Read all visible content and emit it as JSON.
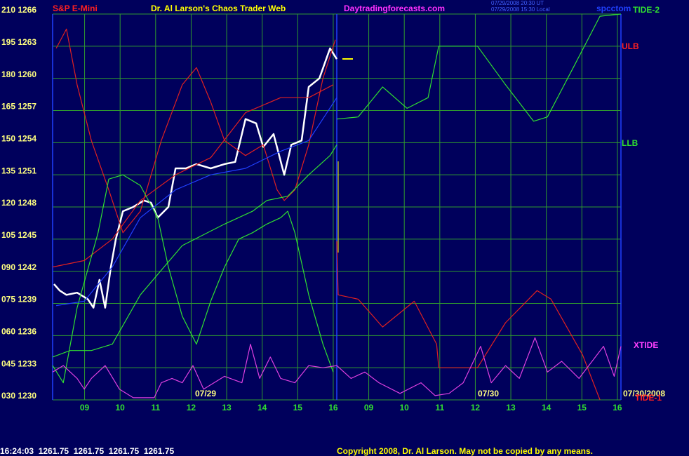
{
  "chart_data": {
    "type": "line",
    "title": "Dr. Al Larson's Chaos Trader Web",
    "subtitle": "S&P E-Mini",
    "annotations": [
      "Daytradingforecasts.com",
      "07/29/2008 20:30 UT",
      "07/29/2008 15:30 Local",
      "spcctom",
      "07/29",
      "07/30",
      "07/30/2008",
      "16:24:03  1261.75  1261.75  1261.75  1261.75",
      "Copyright 2008, Dr. Al Larson. May not be copied by any means."
    ],
    "xlim": [
      0.1,
      16.1
    ],
    "xticks": [
      {
        "value": 1,
        "label": "09"
      },
      {
        "value": 2,
        "label": "10"
      },
      {
        "value": 3,
        "label": "11"
      },
      {
        "value": 4,
        "label": "12"
      },
      {
        "value": 5,
        "label": "13"
      },
      {
        "value": 6,
        "label": "14"
      },
      {
        "value": 7,
        "label": "15"
      },
      {
        "value": 8,
        "label": "16"
      },
      {
        "value": 9,
        "label": "09"
      },
      {
        "value": 10,
        "label": "10"
      },
      {
        "value": 11,
        "label": "11"
      },
      {
        "value": 12,
        "label": "12"
      },
      {
        "value": 13,
        "label": "13"
      },
      {
        "value": 14,
        "label": "14"
      },
      {
        "value": 15,
        "label": "15"
      },
      {
        "value": 16,
        "label": "16"
      }
    ],
    "ylim": [
      30,
      210
    ],
    "yticks": [
      {
        "value": 210,
        "label": "210 1266"
      },
      {
        "value": 195,
        "label": "195 1263"
      },
      {
        "value": 180,
        "label": "180 1260"
      },
      {
        "value": 165,
        "label": "165 1257"
      },
      {
        "value": 150,
        "label": "150 1254"
      },
      {
        "value": 135,
        "label": "135 1251"
      },
      {
        "value": 120,
        "label": "120 1248"
      },
      {
        "value": 105,
        "label": "105 1245"
      },
      {
        "value": 90,
        "label": "090 1242"
      },
      {
        "value": 75,
        "label": "075 1239"
      },
      {
        "value": 60,
        "label": "060 1236"
      },
      {
        "value": 45,
        "label": "045 1233"
      },
      {
        "value": 30,
        "label": "030 1230"
      }
    ],
    "grid": true,
    "series": [
      {
        "color": "#ffffff",
        "x": [
          0.14,
          0.3,
          0.49,
          0.79,
          1.09,
          1.25,
          1.42,
          1.58,
          1.74,
          1.88,
          2.08,
          2.37,
          2.67,
          2.87,
          3.06,
          3.36,
          3.56,
          3.85,
          4.15,
          4.55,
          4.94,
          5.24,
          5.53,
          5.83,
          6.03,
          6.32,
          6.62,
          6.82,
          7.11,
          7.31,
          7.61,
          7.91,
          8.1
        ],
        "values": [
          84,
          81,
          79,
          80,
          77,
          73,
          86,
          73,
          92,
          105,
          118,
          120,
          123,
          122,
          115,
          120,
          138,
          138,
          140,
          138,
          140,
          141,
          161,
          159,
          148,
          154,
          135,
          149,
          151,
          176,
          180,
          194,
          189
        ]
      },
      {
        "name": "ULB",
        "color": "#e02020",
        "x": [
          0.2,
          0.49,
          0.79,
          1.19,
          1.68,
          2.08,
          2.57,
          3.16,
          3.75,
          4.15,
          4.55,
          4.94,
          5.53,
          6.03,
          6.42,
          6.62,
          6.92,
          7.31,
          7.71,
          8.06
        ],
        "values": [
          194,
          203,
          177,
          151,
          128,
          108,
          118,
          151,
          177,
          185,
          169,
          151,
          144,
          149,
          128,
          123,
          128,
          149,
          180,
          198
        ]
      },
      {
        "color": "#e02020",
        "x": [
          0.1,
          0.99,
          1.78,
          2.57,
          3.56,
          4.55,
          5.53,
          6.52,
          7.31,
          8.0
        ],
        "values": [
          92,
          95,
          105,
          123,
          135,
          143,
          164,
          171,
          171,
          177
        ]
      },
      {
        "name": "LLB",
        "color": "#30e030",
        "x": [
          0.1,
          0.59,
          1.19,
          1.78,
          2.57,
          3.75,
          4.94,
          5.73,
          6.13,
          6.72,
          7.31,
          7.91,
          8.1
        ],
        "values": [
          50,
          53,
          53,
          56,
          79,
          102,
          112,
          118,
          123,
          125,
          135,
          144,
          149
        ]
      },
      {
        "color": "#30e030",
        "x": [
          0.1,
          0.4,
          0.79,
          1.38,
          1.68,
          2.08,
          2.57,
          3.06,
          3.36,
          3.75,
          4.15,
          4.55,
          4.94,
          5.34,
          5.73,
          6.13,
          6.52,
          6.72,
          6.92,
          7.31,
          7.71,
          8.0
        ],
        "values": [
          46,
          38,
          73,
          108,
          133,
          135,
          130,
          115,
          92,
          69,
          56,
          76,
          92,
          105,
          108,
          112,
          115,
          118,
          108,
          79,
          56,
          43
        ]
      },
      {
        "color": "#2040ff",
        "x": [
          0.2,
          0.99,
          1.78,
          2.57,
          3.56,
          4.55,
          5.53,
          6.52,
          7.31,
          8.1
        ],
        "values": [
          74,
          76,
          92,
          115,
          128,
          135,
          138,
          146,
          151,
          171
        ]
      },
      {
        "name": "TIDE-2",
        "color": "#30e030",
        "x": [
          8.1,
          8.7,
          9.39,
          10.08,
          10.67,
          10.97,
          12.06,
          12.85,
          13.64,
          14.03,
          14.82,
          15.51,
          16.1
        ],
        "values": [
          161,
          162,
          176,
          166,
          171,
          195,
          195,
          177,
          160,
          162,
          187,
          209,
          210
        ]
      },
      {
        "name": "TIDE-1",
        "color": "#e02020",
        "x": [
          8.1,
          8.14,
          8.7,
          9.39,
          10.28,
          10.91,
          10.97,
          12.06,
          12.85,
          13.74,
          14.13,
          15.02,
          15.51
        ],
        "values": [
          104,
          79,
          77,
          64,
          76,
          56,
          45,
          45,
          66,
          81,
          77,
          51,
          30
        ]
      },
      {
        "name": "XTIDE",
        "color": "#e040e0",
        "x": [
          0.1,
          0.4,
          0.79,
          0.99,
          1.19,
          1.58,
          1.98,
          2.37,
          2.96,
          3.16,
          3.46,
          3.75,
          4.05,
          4.35,
          4.94,
          5.43,
          5.67,
          5.93,
          6.23,
          6.52,
          6.92,
          7.31,
          7.71,
          8.1,
          8.5,
          8.89,
          9.29,
          9.88,
          10.47,
          10.87,
          11.26,
          11.66,
          12.15,
          12.45,
          12.85,
          13.24,
          13.68,
          14.03,
          14.43,
          14.92,
          15.61,
          15.91,
          16.1
        ],
        "values": [
          43,
          46,
          40,
          35,
          40,
          46,
          35,
          31,
          31,
          38,
          40,
          38,
          46,
          35,
          41,
          38,
          56,
          40,
          50,
          40,
          38,
          46,
          45,
          46,
          40,
          43,
          38,
          33,
          38,
          32,
          33,
          38,
          55,
          38,
          46,
          40,
          59,
          43,
          48,
          40,
          55,
          41,
          55
        ]
      }
    ]
  }
}
